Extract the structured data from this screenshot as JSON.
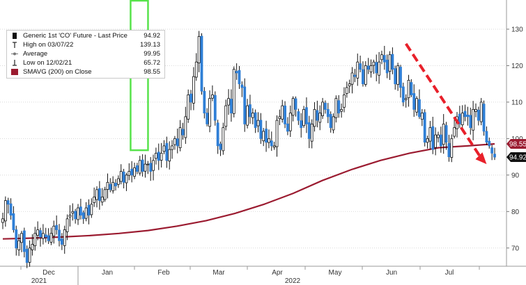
{
  "chart_data": {
    "type": "candlestick",
    "xlabels": [
      "Dec",
      "Jan",
      "Feb",
      "Mar",
      "Apr",
      "May",
      "Jun",
      "Jul"
    ],
    "year_labels": [
      "2021",
      "2022"
    ],
    "yticks": [
      70,
      80,
      90,
      100,
      110,
      120,
      130
    ],
    "ylim": [
      65,
      138
    ],
    "legend": [
      {
        "label": "Generic 1st 'CO' Future - Last Price",
        "value": "94.92",
        "symbol": "candle"
      },
      {
        "label": "High on 03/07/22",
        "value": "139.13",
        "symbol": "high"
      },
      {
        "label": "Average",
        "value": "99.95",
        "symbol": "avg"
      },
      {
        "label": "Low on 12/02/21",
        "value": "65.72",
        "symbol": "low"
      },
      {
        "label": "SMAVG (200)  on Close",
        "value": "98.55",
        "symbol": "sma"
      }
    ],
    "last_price_tag": "94.92",
    "sma_tag": "98.55",
    "series": {
      "price_closes": [
        78,
        83,
        82,
        79,
        75,
        70,
        72,
        74,
        69,
        66,
        70,
        71,
        74,
        75,
        73,
        74,
        73,
        72,
        74,
        76,
        75,
        72,
        71,
        75,
        78,
        79,
        80,
        78,
        81,
        79,
        78,
        81,
        79,
        82,
        84,
        86,
        83,
        84,
        86,
        88,
        86,
        88,
        87,
        89,
        91,
        88,
        90,
        91,
        90,
        92,
        91,
        94,
        91,
        93,
        93,
        91,
        94,
        96,
        94,
        96,
        98,
        94,
        97,
        98,
        100,
        98,
        103,
        101,
        106,
        112,
        110,
        117,
        121,
        128,
        113,
        107,
        104,
        111,
        112,
        105,
        98,
        97,
        103,
        109,
        111,
        107,
        119,
        118,
        115,
        114,
        104,
        109,
        106,
        107,
        103,
        105,
        100,
        102,
        99,
        100,
        98,
        98,
        105,
        106,
        109,
        104,
        102,
        107,
        111,
        108,
        105,
        103,
        108,
        104,
        100,
        104,
        108,
        105,
        107,
        110,
        108,
        106,
        103,
        106,
        111,
        107,
        108,
        112,
        114,
        115,
        118,
        117,
        121,
        119,
        115,
        120,
        119,
        120,
        121,
        118,
        121,
        123,
        121,
        118,
        123,
        119,
        115,
        120,
        114,
        110,
        111,
        116,
        112,
        108,
        111,
        106,
        107,
        99,
        100,
        103,
        97,
        101,
        101,
        98,
        104,
        99,
        95,
        100,
        103,
        106,
        104,
        107,
        106,
        106,
        103,
        108,
        108,
        105,
        110,
        102,
        99,
        98,
        96,
        94.92
      ],
      "sma": [
        72.5,
        72.7,
        73.0,
        73.4,
        74.0,
        74.8,
        76.0,
        77.5,
        79.5,
        82.0,
        85.0,
        88.5,
        91.5,
        94.0,
        96.0,
        97.5,
        98.0,
        98.55
      ],
      "sma_index": [
        0,
        14,
        30,
        45,
        60,
        75,
        90,
        105,
        120,
        135,
        150,
        165,
        180,
        195,
        210,
        225,
        240,
        254
      ]
    },
    "highlight_box": {
      "from_index": 66,
      "to_index": 75,
      "low": 97,
      "high": 138,
      "color": "#57e34b"
    },
    "trend_arrow": {
      "from_index": 150,
      "from_value": 126,
      "to_index": 180,
      "to_value": 93,
      "color": "#e8202a"
    }
  }
}
